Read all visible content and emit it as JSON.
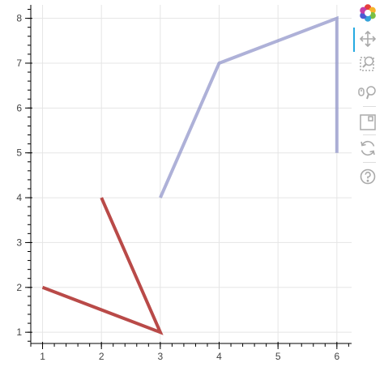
{
  "chart_data": {
    "type": "line",
    "title": "",
    "xlabel": "",
    "ylabel": "",
    "xlim": [
      0.8,
      6.25
    ],
    "ylim": [
      0.75,
      8.3
    ],
    "x_ticks": [
      1,
      2,
      3,
      4,
      5,
      6
    ],
    "y_ticks": [
      1,
      2,
      3,
      4,
      5,
      6,
      7,
      8
    ],
    "grid": true,
    "legend": "none",
    "series": [
      {
        "x": [
          1,
          3,
          2
        ],
        "y": [
          2,
          1,
          4
        ],
        "color": "#b94a48",
        "alpha": 1.0,
        "line_width": 4
      },
      {
        "x": [
          3,
          4,
          6,
          6
        ],
        "y": [
          4,
          7,
          8,
          5
        ],
        "color": "#8b90c8",
        "alpha": 0.7,
        "line_width": 4
      }
    ]
  },
  "toolbar": {
    "logo_icon": "bokeh-logo-icon",
    "tools": [
      {
        "name": "pan-tool",
        "icon": "pan-icon",
        "active": true
      },
      {
        "name": "box-zoom-tool",
        "icon": "box-zoom-icon",
        "active": false
      },
      {
        "name": "wheel-zoom-tool",
        "icon": "wheel-zoom-icon",
        "active": false
      },
      {
        "name": "save-tool",
        "icon": "save-icon",
        "active": false
      },
      {
        "name": "reset-tool",
        "icon": "reset-icon",
        "active": false
      },
      {
        "name": "help-tool",
        "icon": "help-icon",
        "active": false
      }
    ],
    "icon_color": "#aaaaaa",
    "active_color": "#26aae1"
  }
}
